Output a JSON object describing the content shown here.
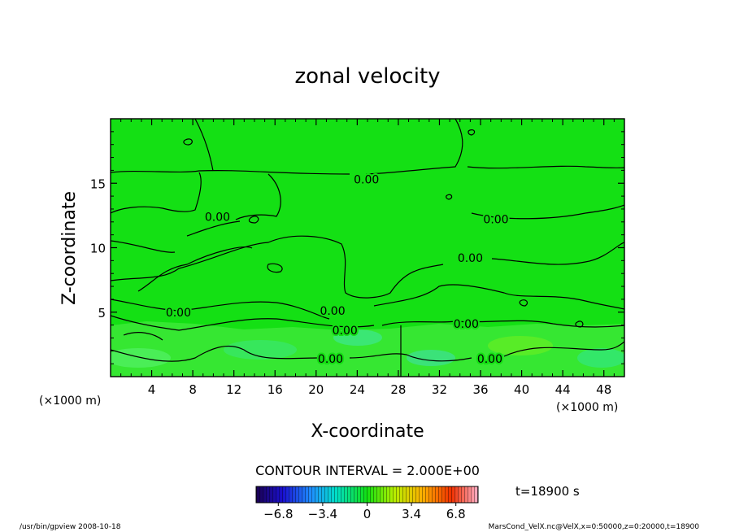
{
  "chart_data": {
    "type": "heatmap",
    "title": "zonal velocity",
    "xlabel": "X-coordinate",
    "ylabel": "Z-coordinate",
    "x_unit": "(×1000 m)",
    "y_unit": "(×1000 m)",
    "xlim": [
      0,
      50
    ],
    "ylim": [
      0,
      20
    ],
    "x_ticks": [
      4,
      8,
      12,
      16,
      20,
      24,
      28,
      32,
      36,
      40,
      44,
      48
    ],
    "y_ticks": [
      5,
      10,
      15
    ],
    "contour_interval_text": "CONTOUR INTERVAL = 2.000E+00",
    "time_text": "t=18900 s",
    "colorbar": {
      "ticks": [
        -6.8,
        -3.4,
        0,
        3.4,
        6.8
      ],
      "tick_labels": [
        "−6.8",
        "−3.4",
        "0",
        "3.4",
        "6.8"
      ],
      "range": [
        -8.5,
        8.5
      ]
    },
    "contour_labels": [
      {
        "text": "0.00",
        "x": 24.9,
        "z": 15.3
      },
      {
        "text": "0.00",
        "x": 10.4,
        "z": 12.4
      },
      {
        "text": "0.00",
        "x": 37.5,
        "z": 12.2
      },
      {
        "text": "0.00",
        "x": 35.0,
        "z": 9.2
      },
      {
        "text": "0.00",
        "x": 6.6,
        "z": 5.0
      },
      {
        "text": "0.00",
        "x": 21.6,
        "z": 5.1
      },
      {
        "text": "0.00",
        "x": 22.8,
        "z": 3.6
      },
      {
        "text": "0.00",
        "x": 34.6,
        "z": 4.1
      },
      {
        "text": "0.00",
        "x": 21.4,
        "z": 1.4
      },
      {
        "text": "0.00",
        "x": 36.9,
        "z": 1.4
      }
    ]
  },
  "footer": {
    "left": "/usr/bin/gpview   2008-10-18",
    "right": "MarsCond_VelX.nc@VelX,x=0:50000,z=0:20000,t=18900"
  }
}
